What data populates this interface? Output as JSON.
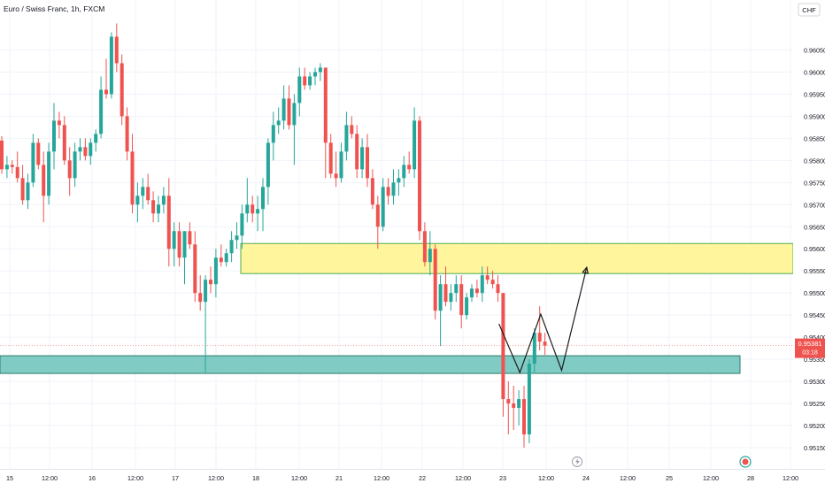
{
  "header": {
    "title": "Euro / Swiss Franc, 1h, FXCM"
  },
  "currency_badge": "CHF",
  "price_label": {
    "price": "0.95381",
    "countdown": "03:18"
  },
  "bottom_icons": {
    "lightning": "lightning-icon",
    "record": "record-icon"
  },
  "colors": {
    "up": "#26a69a",
    "down": "#ef5350",
    "resistance_zone": "#fff59d",
    "resistance_border": "#4caf50",
    "support_zone": "#80cbc4",
    "support_border": "#2e7d6b",
    "projection": "#1c1c1c",
    "price_badge": "#ef5350"
  },
  "chart_data": {
    "type": "candlestick",
    "title": "Euro / Swiss Franc, 1h, FXCM",
    "y_ticks": [
      "0.96050",
      "0.96000",
      "0.95950",
      "0.95900",
      "0.95850",
      "0.95800",
      "0.95750",
      "0.95700",
      "0.95650",
      "0.95600",
      "0.95550",
      "0.95500",
      "0.95450",
      "0.95400",
      "0.95350",
      "0.95300",
      "0.95250",
      "0.95200",
      "0.95150"
    ],
    "x_ticks": [
      "15",
      "12:00",
      "16",
      "12:00",
      "17",
      "12:00",
      "18",
      "12:00",
      "21",
      "12:00",
      "22",
      "12:00",
      "23",
      "12:00",
      "24",
      "12:00",
      "25",
      "12:00",
      "28",
      "12:00"
    ],
    "ylim": [
      0.95132,
      0.96107
    ],
    "current_price": 0.95381,
    "zones": [
      {
        "name": "resistance",
        "low": 0.95544,
        "high": 0.95612
      },
      {
        "name": "support",
        "low": 0.95318,
        "high": 0.95358
      }
    ],
    "projection_path": [
      {
        "x": 59.5,
        "y": 0.9543
      },
      {
        "x": 62,
        "y": 0.9532
      },
      {
        "x": 64.5,
        "y": 0.95452
      },
      {
        "x": 67,
        "y": 0.95325
      },
      {
        "x": 70,
        "y": 0.95558
      }
    ],
    "candles_ohlc": [
      [
        0.95845,
        0.95855,
        0.9577,
        0.9578
      ],
      [
        0.9578,
        0.9581,
        0.9576,
        0.9579
      ],
      [
        0.9579,
        0.958,
        0.9577,
        0.95785
      ],
      [
        0.95785,
        0.9582,
        0.9575,
        0.9576
      ],
      [
        0.9576,
        0.9579,
        0.957,
        0.9571
      ],
      [
        0.9571,
        0.9577,
        0.9569,
        0.9575
      ],
      [
        0.9575,
        0.9586,
        0.9574,
        0.9584
      ],
      [
        0.9584,
        0.9585,
        0.9578,
        0.9579
      ],
      [
        0.9579,
        0.9582,
        0.9566,
        0.9572
      ],
      [
        0.9572,
        0.9584,
        0.957,
        0.9582
      ],
      [
        0.9582,
        0.9593,
        0.9578,
        0.9589
      ],
      [
        0.9589,
        0.9591,
        0.9585,
        0.9588
      ],
      [
        0.9588,
        0.959,
        0.9579,
        0.958
      ],
      [
        0.958,
        0.9583,
        0.9572,
        0.9576
      ],
      [
        0.9576,
        0.9584,
        0.9574,
        0.9582
      ],
      [
        0.9582,
        0.9585,
        0.958,
        0.9583
      ],
      [
        0.9583,
        0.9585,
        0.958,
        0.9581
      ],
      [
        0.9581,
        0.9585,
        0.9579,
        0.9584
      ],
      [
        0.9584,
        0.9587,
        0.9582,
        0.9586
      ],
      [
        0.9586,
        0.9599,
        0.9585,
        0.9596
      ],
      [
        0.9596,
        0.9603,
        0.9594,
        0.9595
      ],
      [
        0.9595,
        0.9609,
        0.9594,
        0.9608
      ],
      [
        0.9608,
        0.9611,
        0.96,
        0.9602
      ],
      [
        0.9602,
        0.9604,
        0.9588,
        0.959
      ],
      [
        0.959,
        0.9592,
        0.958,
        0.9582
      ],
      [
        0.9582,
        0.9586,
        0.9568,
        0.957
      ],
      [
        0.957,
        0.9575,
        0.9566,
        0.9572
      ],
      [
        0.9572,
        0.9576,
        0.9569,
        0.9574
      ],
      [
        0.9574,
        0.9577,
        0.957,
        0.9571
      ],
      [
        0.9571,
        0.9573,
        0.9566,
        0.9568
      ],
      [
        0.9568,
        0.9572,
        0.9566,
        0.957
      ],
      [
        0.957,
        0.9574,
        0.9568,
        0.9572
      ],
      [
        0.9572,
        0.9576,
        0.9556,
        0.956
      ],
      [
        0.956,
        0.9566,
        0.9556,
        0.9564
      ],
      [
        0.9564,
        0.9566,
        0.9556,
        0.9558
      ],
      [
        0.9558,
        0.9562,
        0.9552,
        0.9564
      ],
      [
        0.9564,
        0.9566,
        0.956,
        0.9561
      ],
      [
        0.9561,
        0.9564,
        0.9548,
        0.955
      ],
      [
        0.955,
        0.9554,
        0.9546,
        0.9548
      ],
      [
        0.9548,
        0.9554,
        0.9532,
        0.9553
      ],
      [
        0.9553,
        0.9556,
        0.955,
        0.9552
      ],
      [
        0.9552,
        0.956,
        0.9549,
        0.9558
      ],
      [
        0.9558,
        0.9561,
        0.9556,
        0.9557
      ],
      [
        0.9557,
        0.956,
        0.9556,
        0.9559
      ],
      [
        0.9559,
        0.9564,
        0.9557,
        0.9562
      ],
      [
        0.9562,
        0.9566,
        0.956,
        0.9563
      ],
      [
        0.9563,
        0.957,
        0.956,
        0.9568
      ],
      [
        0.9568,
        0.9576,
        0.9566,
        0.957
      ],
      [
        0.957,
        0.9572,
        0.9566,
        0.9568
      ],
      [
        0.9568,
        0.9572,
        0.9564,
        0.9569
      ],
      [
        0.9569,
        0.9576,
        0.9564,
        0.9574
      ],
      [
        0.9574,
        0.9585,
        0.957,
        0.9584
      ],
      [
        0.9584,
        0.9591,
        0.958,
        0.9588
      ],
      [
        0.9588,
        0.9592,
        0.9586,
        0.9589
      ],
      [
        0.9589,
        0.9597,
        0.9587,
        0.9594
      ],
      [
        0.9594,
        0.9597,
        0.9587,
        0.9588
      ],
      [
        0.9588,
        0.9595,
        0.9579,
        0.9593
      ],
      [
        0.9593,
        0.9601,
        0.959,
        0.9599
      ],
      [
        0.9599,
        0.9601,
        0.9596,
        0.9597
      ],
      [
        0.9597,
        0.96,
        0.9596,
        0.9599
      ],
      [
        0.9599,
        0.9601,
        0.9597,
        0.96
      ],
      [
        0.96,
        0.9602,
        0.9598,
        0.9601
      ],
      [
        0.9601,
        0.96,
        0.9576,
        0.9584
      ],
      [
        0.9584,
        0.9586,
        0.9576,
        0.9577
      ],
      [
        0.9577,
        0.9582,
        0.9574,
        0.9576
      ],
      [
        0.9576,
        0.9584,
        0.9575,
        0.9582
      ],
      [
        0.9582,
        0.9591,
        0.958,
        0.9588
      ],
      [
        0.9588,
        0.959,
        0.9585,
        0.9586
      ],
      [
        0.9586,
        0.9588,
        0.9576,
        0.9578
      ],
      [
        0.9578,
        0.9585,
        0.9576,
        0.9583
      ],
      [
        0.9583,
        0.9586,
        0.9574,
        0.9576
      ],
      [
        0.9576,
        0.9578,
        0.9569,
        0.957
      ],
      [
        0.957,
        0.9572,
        0.956,
        0.9565
      ],
      [
        0.9565,
        0.9576,
        0.9564,
        0.9574
      ],
      [
        0.9574,
        0.9576,
        0.957,
        0.9572
      ],
      [
        0.9572,
        0.9578,
        0.957,
        0.9575
      ],
      [
        0.9575,
        0.9578,
        0.9572,
        0.9576
      ],
      [
        0.9576,
        0.9581,
        0.9574,
        0.9579
      ],
      [
        0.9579,
        0.9582,
        0.9577,
        0.9578
      ],
      [
        0.9578,
        0.9592,
        0.9576,
        0.9589
      ],
      [
        0.9589,
        0.959,
        0.9562,
        0.9564
      ],
      [
        0.9564,
        0.9566,
        0.9556,
        0.9557
      ],
      [
        0.9557,
        0.9564,
        0.9554,
        0.956
      ],
      [
        0.956,
        0.9561,
        0.9544,
        0.9546
      ],
      [
        0.9546,
        0.9554,
        0.9538,
        0.9552
      ],
      [
        0.9552,
        0.9556,
        0.9547,
        0.9548
      ],
      [
        0.9548,
        0.9552,
        0.9546,
        0.955
      ],
      [
        0.955,
        0.9554,
        0.9548,
        0.9552
      ],
      [
        0.9552,
        0.9554,
        0.9542,
        0.9545
      ],
      [
        0.9545,
        0.955,
        0.9544,
        0.9549
      ],
      [
        0.9549,
        0.9552,
        0.9548,
        0.9551
      ],
      [
        0.9551,
        0.9553,
        0.9549,
        0.955
      ],
      [
        0.955,
        0.9556,
        0.9548,
        0.9554
      ],
      [
        0.9554,
        0.9556,
        0.9552,
        0.9553
      ],
      [
        0.9553,
        0.9555,
        0.9551,
        0.9552
      ],
      [
        0.9552,
        0.9554,
        0.9548,
        0.955
      ],
      [
        0.955,
        0.955,
        0.9522,
        0.9526
      ],
      [
        0.9526,
        0.953,
        0.9518,
        0.9525
      ],
      [
        0.9525,
        0.9529,
        0.9519,
        0.9524
      ],
      [
        0.9524,
        0.9528,
        0.952,
        0.9526
      ],
      [
        0.9526,
        0.9529,
        0.9515,
        0.9518
      ],
      [
        0.9518,
        0.9535,
        0.9516,
        0.9534
      ],
      [
        0.9534,
        0.9542,
        0.9532,
        0.9541
      ],
      [
        0.9541,
        0.9547,
        0.9537,
        0.9539
      ],
      [
        0.9539,
        0.9541,
        0.9536,
        0.95381
      ]
    ]
  }
}
